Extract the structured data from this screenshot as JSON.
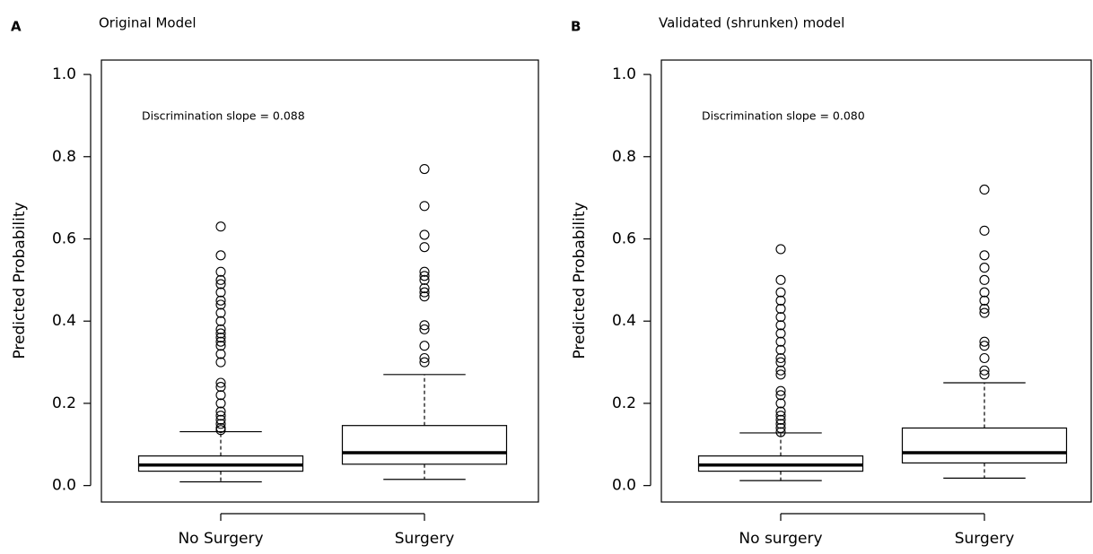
{
  "chart_data": [
    {
      "type": "box",
      "panel_label": "A",
      "title": "Original Model",
      "annotation": "Discrimination slope = 0.088",
      "ylabel": "Predicted Probability",
      "categories": [
        "No Surgery",
        "Surgery"
      ],
      "boxes": [
        {
          "min": 0.009,
          "q1": 0.035,
          "median": 0.05,
          "q3": 0.072,
          "max": 0.131,
          "outliers": [
            0.135,
            0.14,
            0.15,
            0.16,
            0.17,
            0.18,
            0.2,
            0.22,
            0.24,
            0.25,
            0.3,
            0.32,
            0.34,
            0.35,
            0.36,
            0.37,
            0.38,
            0.4,
            0.42,
            0.44,
            0.45,
            0.47,
            0.49,
            0.5,
            0.52,
            0.56,
            0.63
          ]
        },
        {
          "min": 0.015,
          "q1": 0.052,
          "median": 0.08,
          "q3": 0.146,
          "max": 0.27,
          "outliers": [
            0.3,
            0.31,
            0.34,
            0.38,
            0.39,
            0.46,
            0.47,
            0.48,
            0.5,
            0.51,
            0.52,
            0.58,
            0.61,
            0.68,
            0.77
          ]
        }
      ],
      "ylim": [
        -0.04,
        1.035
      ],
      "yticks": [
        {
          "value": 0,
          "label": "0.0"
        },
        0.2,
        0.4,
        0.6,
        0.8,
        {
          "value": 1,
          "label": "1.0"
        }
      ]
    },
    {
      "type": "box",
      "panel_label": "B",
      "title": "Validated (shrunken) model",
      "annotation": "Discrimination slope = 0.080",
      "ylabel": "Predicted Probability",
      "categories": [
        "No surgery",
        "Surgery"
      ],
      "boxes": [
        {
          "min": 0.012,
          "q1": 0.035,
          "median": 0.05,
          "q3": 0.072,
          "max": 0.128,
          "outliers": [
            0.13,
            0.14,
            0.15,
            0.16,
            0.17,
            0.18,
            0.2,
            0.22,
            0.23,
            0.27,
            0.28,
            0.3,
            0.31,
            0.33,
            0.35,
            0.37,
            0.39,
            0.41,
            0.43,
            0.45,
            0.47,
            0.5,
            0.575
          ]
        },
        {
          "min": 0.018,
          "q1": 0.055,
          "median": 0.08,
          "q3": 0.14,
          "max": 0.25,
          "outliers": [
            0.27,
            0.28,
            0.31,
            0.34,
            0.35,
            0.42,
            0.43,
            0.45,
            0.47,
            0.5,
            0.53,
            0.56,
            0.62,
            0.72
          ]
        }
      ],
      "ylim": [
        -0.04,
        1.035
      ],
      "yticks": [
        {
          "value": 0,
          "label": "0.0"
        },
        0.2,
        0.4,
        0.6,
        0.8,
        {
          "value": 1,
          "label": "1.0"
        }
      ]
    }
  ]
}
